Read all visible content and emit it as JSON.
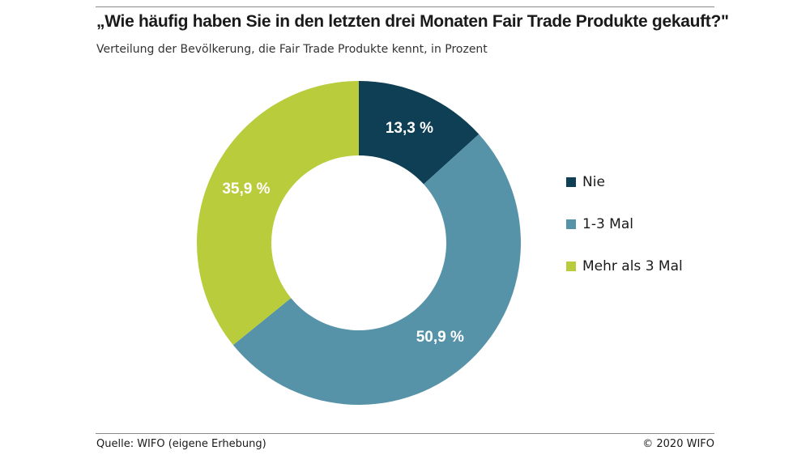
{
  "title": "„Wie häufig haben Sie in den letzten drei Monaten Fair Trade Produkte gekauft?\"",
  "subtitle": "Verteilung der Bevölkerung, die Fair Trade Produkte kennt, in Prozent",
  "source": "Quelle: WIFO (eigene Erhebung)",
  "copyright": "© 2020 WIFO",
  "chart_data": {
    "type": "pie",
    "donut": true,
    "title": "„Wie häufig haben Sie in den letzten drei Monaten Fair Trade Produkte gekauft?\"",
    "subtitle": "Verteilung der Bevölkerung, die Fair Trade Produkte kennt, in Prozent",
    "categories": [
      "Nie",
      "1-3 Mal",
      "Mehr als 3 Mal"
    ],
    "values": [
      13.3,
      50.9,
      35.9
    ],
    "data_labels": [
      "13,3 %",
      "50,9 %",
      "35,9 %"
    ],
    "colors": [
      "#0f3f55",
      "#5793a8",
      "#b8cc3c"
    ],
    "legend_position": "right"
  }
}
